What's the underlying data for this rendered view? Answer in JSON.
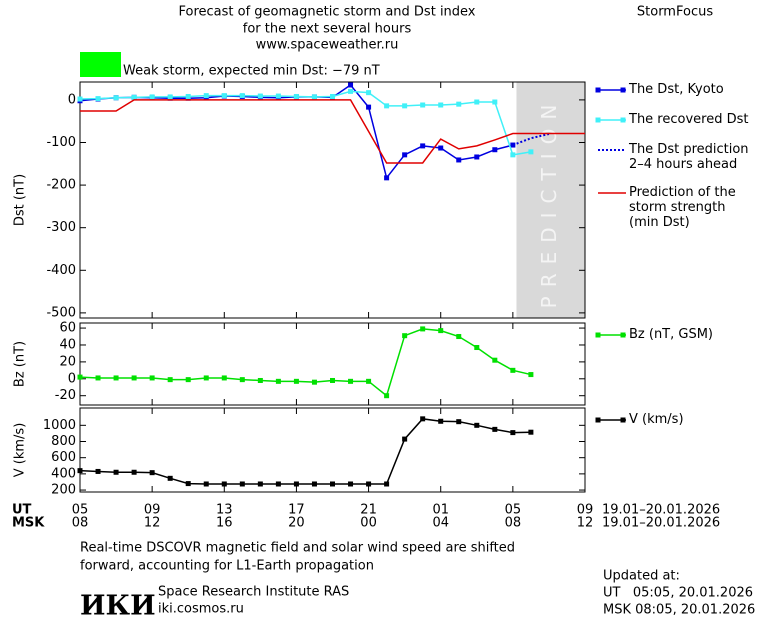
{
  "header": {
    "title": [
      "Forecast of geomagnetic storm and Dst index",
      "for the next several hours",
      "www.spaceweather.ru"
    ],
    "brand": "StormFocus",
    "storm_label": "Weak storm, expected min Dst: −79 nT",
    "storm_color": "#00ff00"
  },
  "chart_data": [
    {
      "type": "line",
      "y_label": "Dst (nT)",
      "xlim": [
        0,
        28
      ],
      "ylim": [
        -512,
        42
      ],
      "yticks": [
        0,
        -100,
        -200,
        -300,
        -400,
        -500
      ],
      "shade_x": [
        24.2,
        28
      ],
      "shade_color": "#d9d9d9",
      "shade_label": "PREDICTION",
      "series": [
        {
          "name": "The Dst, Kyoto",
          "color": "#0000e0",
          "marker": "square",
          "x": [
            0,
            1,
            2,
            3,
            4,
            5,
            6,
            7,
            8,
            9,
            10,
            11,
            12,
            13,
            14,
            15,
            16,
            17,
            18,
            19,
            20,
            21,
            22,
            23,
            24
          ],
          "values": [
            -2,
            2,
            5,
            6,
            5,
            4,
            4,
            5,
            9,
            8,
            6,
            5,
            7,
            7,
            6,
            35,
            -17,
            -183,
            -129,
            -108,
            -113,
            -141,
            -134,
            -117,
            -106
          ]
        },
        {
          "name": "The recovered Dst",
          "color": "#40f0f8",
          "marker": "square",
          "x": [
            0,
            1,
            2,
            3,
            4,
            5,
            6,
            7,
            8,
            9,
            10,
            11,
            12,
            13,
            14,
            15,
            16,
            17,
            18,
            19,
            20,
            21,
            22,
            23,
            24,
            25
          ],
          "values": [
            2,
            3,
            5,
            6,
            7,
            7,
            8,
            10,
            10,
            10,
            9,
            9,
            8,
            7,
            8,
            20,
            17,
            -14,
            -14,
            -12,
            -12,
            -10,
            -5,
            -5,
            -129,
            -122
          ]
        },
        {
          "name": "The Dst prediction\n2–4 hours ahead",
          "color": "#0000e0",
          "dotted": true,
          "x": [
            24,
            25,
            26
          ],
          "values": [
            -106,
            -90,
            -80
          ]
        },
        {
          "name": "Prediction of the\nstorm strength\n(min Dst)",
          "color": "#e00000",
          "x": [
            0,
            2,
            3,
            15,
            17,
            19,
            20,
            21,
            22,
            23,
            24,
            28
          ],
          "values": [
            -26,
            -26,
            0,
            0,
            -148,
            -148,
            -92,
            -115,
            -108,
            -94,
            -79,
            -79
          ]
        }
      ]
    },
    {
      "type": "line",
      "y_label": "Bz (nT)",
      "xlim": [
        0,
        28
      ],
      "ylim": [
        -31,
        66
      ],
      "yticks": [
        60,
        40,
        20,
        0,
        -20
      ],
      "series": [
        {
          "name": "Bz (nT, GSM)",
          "color": "#00e000",
          "marker": "square",
          "x": [
            0,
            1,
            2,
            3,
            4,
            5,
            6,
            7,
            8,
            9,
            10,
            11,
            12,
            13,
            14,
            15,
            16,
            17,
            18,
            19,
            20,
            21,
            22,
            23,
            24,
            25
          ],
          "values": [
            2,
            1,
            1,
            1,
            1,
            -1,
            -1,
            1,
            1,
            -1,
            -2,
            -3,
            -3,
            -4,
            -2,
            -3,
            -3,
            -20,
            51,
            59,
            57,
            50,
            37,
            22,
            10,
            5
          ]
        }
      ]
    },
    {
      "type": "line",
      "y_label": "V (km/s)",
      "xlim": [
        0,
        28
      ],
      "ylim": [
        176,
        1214
      ],
      "yticks": [
        1000,
        800,
        600,
        400,
        200
      ],
      "series": [
        {
          "name": "V (km/s)",
          "color": "#000000",
          "marker": "square",
          "x": [
            0,
            1,
            2,
            3,
            4,
            5,
            6,
            7,
            8,
            9,
            10,
            11,
            12,
            13,
            14,
            15,
            16,
            17,
            18,
            19,
            20,
            21,
            22,
            23,
            24,
            25
          ],
          "values": [
            440,
            430,
            420,
            420,
            415,
            345,
            280,
            275,
            275,
            275,
            275,
            275,
            275,
            275,
            275,
            275,
            275,
            275,
            830,
            1080,
            1050,
            1045,
            1000,
            950,
            910,
            915
          ]
        }
      ],
      "x_row_labels": [
        "UT",
        "MSK"
      ],
      "xticks": [
        {
          "value": 0,
          "label": "05"
        },
        {
          "value": 4,
          "label": "09"
        },
        {
          "value": 8,
          "label": "13"
        },
        {
          "value": 12,
          "label": "17"
        },
        {
          "value": 16,
          "label": "21"
        },
        {
          "value": 20,
          "label": "01"
        },
        {
          "value": 24,
          "label": "05"
        },
        {
          "value": 28,
          "label": "09"
        }
      ],
      "xticks_msk": [
        {
          "value": 0,
          "label": "08"
        },
        {
          "value": 4,
          "label": "12"
        },
        {
          "value": 8,
          "label": "16"
        },
        {
          "value": 12,
          "label": "20"
        },
        {
          "value": 16,
          "label": "00"
        },
        {
          "value": 20,
          "label": "04"
        },
        {
          "value": 24,
          "label": "08"
        },
        {
          "value": 28,
          "label": "12"
        }
      ],
      "date_ranges": [
        "19.01–20.01.2026",
        "19.01–20.01.2026"
      ]
    }
  ],
  "footer": {
    "note": [
      "Real-time DSCOVR magnetic field and solar wind speed are shifted",
      "forward, accounting for L1-Earth propagation"
    ],
    "logo": "ИКИ",
    "institute": "Space Research Institute RAS",
    "site": "iki.cosmos.ru",
    "updated": [
      "Updated at:",
      "UT   05:05, 20.01.2026",
      "MSK 08:05, 20.01.2026"
    ]
  }
}
